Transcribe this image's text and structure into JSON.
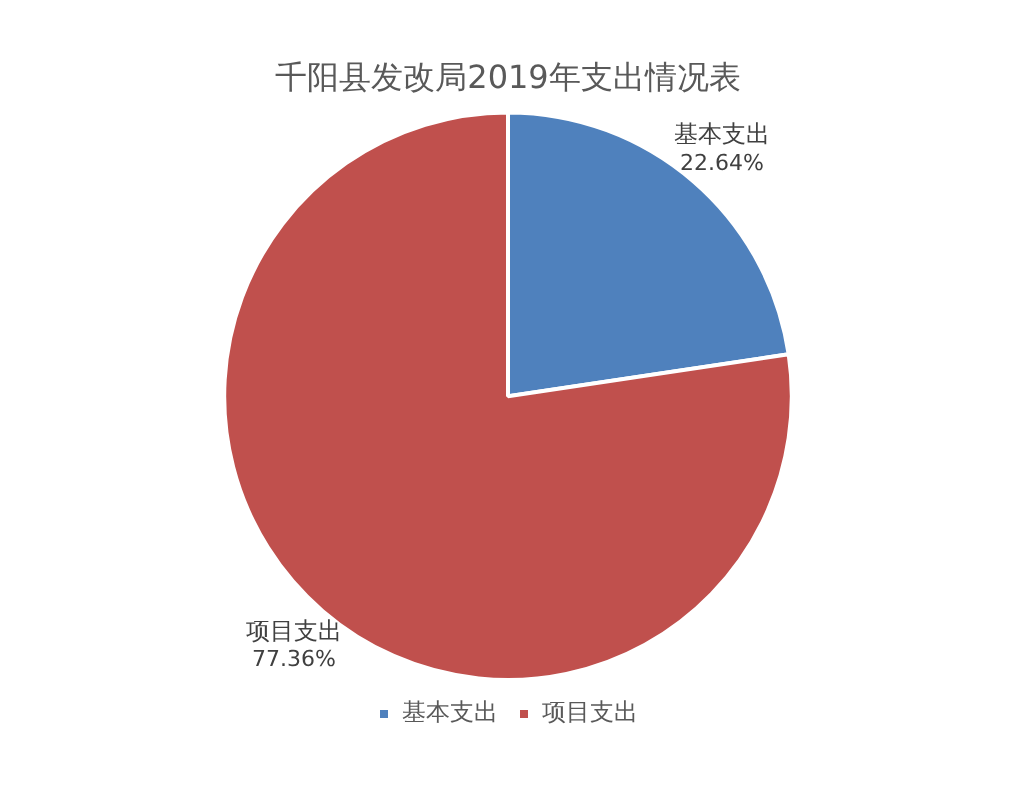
{
  "chart_data": {
    "type": "pie",
    "title": "千阳县发改局2019年支出情况表",
    "categories": [
      "基本支出",
      "项目支出"
    ],
    "values": [
      22.64,
      77.36
    ],
    "colors": [
      "#4f81bd",
      "#c0504d"
    ],
    "value_labels": [
      "22.64%",
      "77.36%"
    ],
    "legend": "bottom"
  }
}
